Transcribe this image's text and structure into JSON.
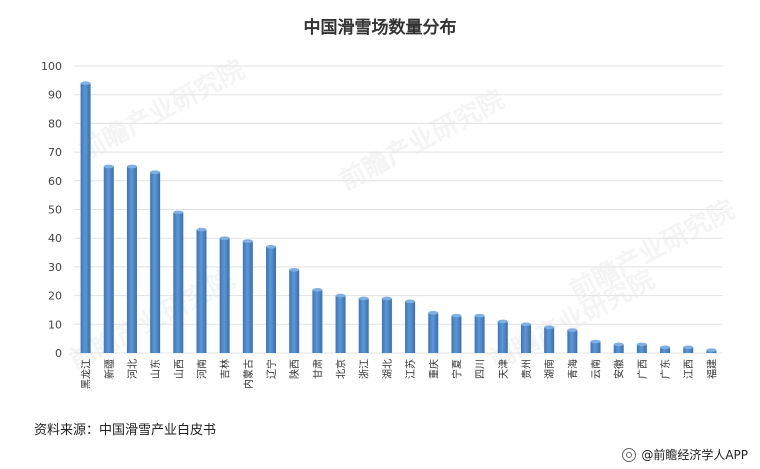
{
  "chart_data": {
    "type": "bar",
    "title": "中国滑雪场数量分布",
    "xlabel": "",
    "ylabel": "",
    "ylim": [
      0,
      100
    ],
    "yticks": [
      0,
      10,
      20,
      30,
      40,
      50,
      60,
      70,
      80,
      90,
      100
    ],
    "grid": true,
    "legend": "none",
    "bar_color": "#4a86c8",
    "categories": [
      "黑龙江",
      "新疆",
      "河北",
      "山东",
      "山西",
      "河南",
      "吉林",
      "内蒙古",
      "辽宁",
      "陕西",
      "甘肃",
      "北京",
      "浙江",
      "湖北",
      "江苏",
      "重庆",
      "宁夏",
      "四川",
      "天津",
      "贵州",
      "湖南",
      "青海",
      "云南",
      "安徽",
      "广西",
      "广东",
      "江西",
      "福建"
    ],
    "values": [
      94,
      65,
      65,
      63,
      49,
      43,
      40,
      39,
      37,
      29,
      22,
      20,
      19,
      19,
      18,
      14,
      13,
      13,
      11,
      10,
      9,
      8,
      4,
      3,
      3,
      2,
      2,
      1
    ]
  },
  "footer": {
    "source": "资料来源：中国滑雪产业白皮书",
    "brand": "@前瞻经济学人APP"
  },
  "watermark": {
    "text": "前瞻产业研究院"
  }
}
